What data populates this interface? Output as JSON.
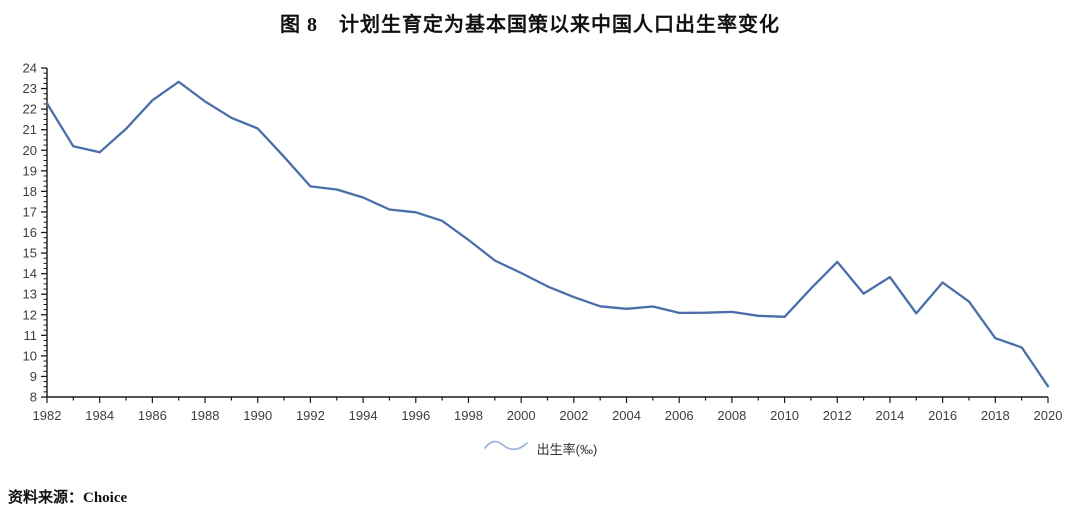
{
  "page": {
    "title": "图 8　计划生育定为基本国策以来中国人口出生率变化",
    "source_label": "资料来源：Choice"
  },
  "legend": {
    "label": "出生率(‰)"
  },
  "colors": {
    "line": "#4a6fa8",
    "legend_icon": "#9db3d8",
    "axis": "#1a1a1a",
    "tick_label": "#3f3f3f"
  },
  "chart_data": {
    "type": "line",
    "title": "图 8　计划生育定为基本国策以来中国人口出生率变化",
    "xlabel": "",
    "ylabel": "出生率(‰)",
    "x": [
      1982,
      1983,
      1984,
      1985,
      1986,
      1987,
      1988,
      1989,
      1990,
      1991,
      1992,
      1993,
      1994,
      1995,
      1996,
      1997,
      1998,
      1999,
      2000,
      2001,
      2002,
      2003,
      2004,
      2005,
      2006,
      2007,
      2008,
      2009,
      2010,
      2011,
      2012,
      2013,
      2014,
      2015,
      2016,
      2017,
      2018,
      2019,
      2020
    ],
    "series": [
      {
        "name": "出生率(‰)",
        "values": [
          22.28,
          20.19,
          19.9,
          21.04,
          22.43,
          23.33,
          22.37,
          21.58,
          21.06,
          19.68,
          18.24,
          18.09,
          17.7,
          17.12,
          16.98,
          16.57,
          15.64,
          14.64,
          14.03,
          13.38,
          12.86,
          12.41,
          12.29,
          12.4,
          12.09,
          12.1,
          12.14,
          11.95,
          11.9,
          13.27,
          14.57,
          13.03,
          13.83,
          12.07,
          13.57,
          12.64,
          10.86,
          10.41,
          8.52
        ]
      }
    ],
    "ylim": [
      8,
      24
    ],
    "ytick_step": 1,
    "yminor_step": 0.25,
    "xtick_label_step": 2,
    "grid": false,
    "legend_position": "bottom"
  }
}
